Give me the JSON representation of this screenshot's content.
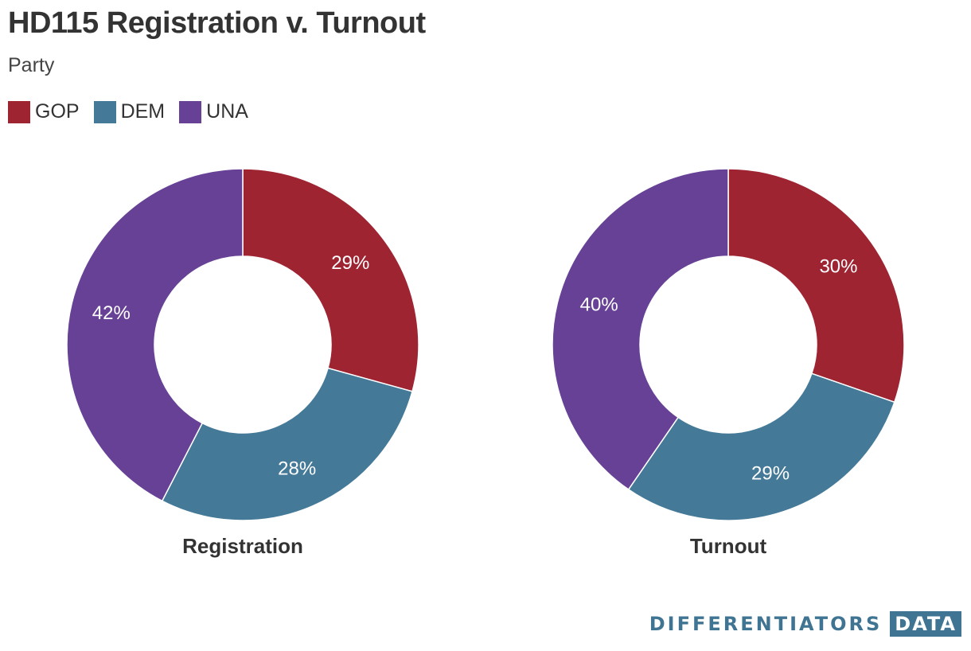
{
  "title": "HD115 Registration v. Turnout",
  "subtitle": "Party",
  "legend": [
    {
      "label": "GOP",
      "color": "#9e2432"
    },
    {
      "label": "DEM",
      "color": "#447998"
    },
    {
      "label": "UNA",
      "color": "#674196"
    }
  ],
  "brand": {
    "name": "DIFFERENTIATORS",
    "suffix": "DATA"
  },
  "chart_data": [
    {
      "type": "pie",
      "title": "Registration",
      "categories": [
        "GOP",
        "DEM",
        "UNA"
      ],
      "values": [
        29,
        28,
        42
      ],
      "labels": [
        "29%",
        "28%",
        "42%"
      ],
      "colors": [
        "#9e2432",
        "#447998",
        "#674196"
      ],
      "donut": true
    },
    {
      "type": "pie",
      "title": "Turnout",
      "categories": [
        "GOP",
        "DEM",
        "UNA"
      ],
      "values": [
        30,
        29,
        40
      ],
      "labels": [
        "30%",
        "29%",
        "40%"
      ],
      "colors": [
        "#9e2432",
        "#447998",
        "#674196"
      ],
      "donut": true
    }
  ]
}
